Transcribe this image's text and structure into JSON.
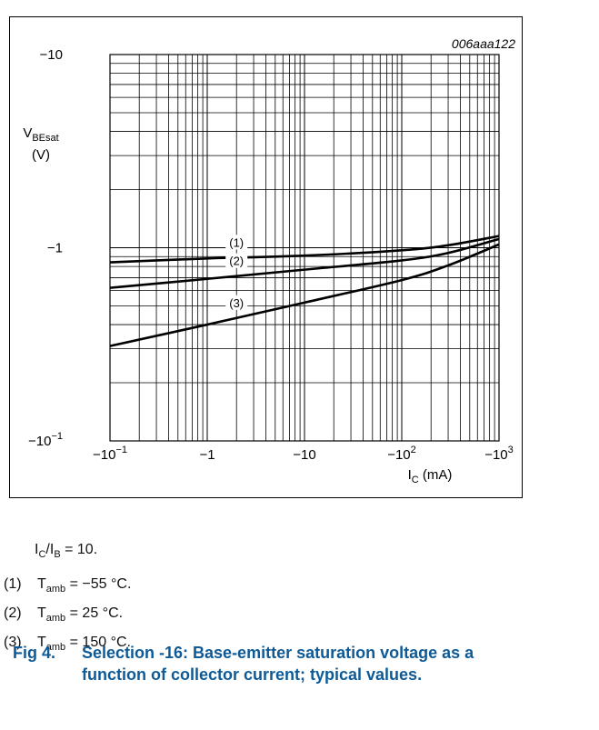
{
  "chart_data": {
    "type": "line",
    "ref_code": "006aaa122",
    "xlabel": {
      "main": "I",
      "sub": "C",
      "unit": " (mA)"
    },
    "ylabel": {
      "main": "V",
      "sub": "BEsat",
      "unit": "(V)"
    },
    "x_scale": "log",
    "y_scale": "log",
    "xlim": [
      -0.1,
      -1000
    ],
    "ylim": [
      -0.1,
      -10
    ],
    "x_ticks": [
      {
        "base": "−10",
        "exp": "−1"
      },
      {
        "base": "−1",
        "exp": ""
      },
      {
        "base": "−10",
        "exp": ""
      },
      {
        "base": "−10",
        "exp": "2"
      },
      {
        "base": "−10",
        "exp": "3"
      }
    ],
    "y_ticks": [
      {
        "base": "−10",
        "exp": "−1"
      },
      {
        "base": "−1",
        "exp": ""
      },
      {
        "base": "−10",
        "exp": ""
      }
    ],
    "grid": true,
    "series": [
      {
        "name": "(1)",
        "x": [
          -0.1,
          -1,
          -10,
          -100,
          -300,
          -1000
        ],
        "y": [
          -0.84,
          -0.88,
          -0.91,
          -0.97,
          -1.03,
          -1.15
        ]
      },
      {
        "name": "(2)",
        "x": [
          -0.1,
          -1,
          -10,
          -100,
          -300,
          -1000
        ],
        "y": [
          -0.62,
          -0.69,
          -0.77,
          -0.86,
          -0.94,
          -1.11
        ]
      },
      {
        "name": "(3)",
        "x": [
          -0.1,
          -1,
          -10,
          -100,
          -300,
          -1000
        ],
        "y": [
          -0.31,
          -0.4,
          -0.52,
          -0.68,
          -0.81,
          -1.04
        ]
      }
    ]
  },
  "notes": {
    "ratio": {
      "a": "I",
      "a_sub": "C",
      "slash": "/",
      "b": "I",
      "b_sub": "B",
      "rest": " = 10."
    },
    "conditions": [
      {
        "num": "(1)",
        "t": "T",
        "t_sub": "amb",
        "rest": " = −55 °C."
      },
      {
        "num": "(2)",
        "t": "T",
        "t_sub": "amb",
        "rest": " = 25 °C."
      },
      {
        "num": "(3)",
        "t": "T",
        "t_sub": "amb",
        "rest": " = 150 °C."
      }
    ]
  },
  "caption": {
    "fig": "Fig 4.",
    "text": "Selection -16: Base-emitter saturation voltage as a function of collector current; typical values."
  },
  "colors": {
    "caption": "#0e5a97",
    "panel": "#ffffff"
  }
}
